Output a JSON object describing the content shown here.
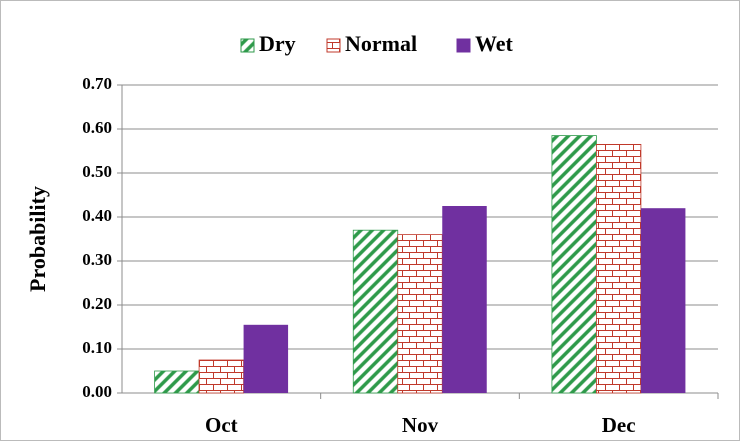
{
  "chart_data": {
    "type": "bar",
    "y_label": "Probability",
    "categories": [
      "Oct",
      "Nov",
      "Dec"
    ],
    "series": [
      {
        "name": "Dry",
        "color": "#2e9a4a",
        "values": [
          0.05,
          0.37,
          0.585
        ]
      },
      {
        "name": "Normal",
        "color": "#c0392b",
        "values": [
          0.075,
          0.36,
          0.565
        ]
      },
      {
        "name": "Wet",
        "color": "#7030a0",
        "values": [
          0.155,
          0.425,
          0.42
        ]
      }
    ],
    "ylim": [
      0,
      0.7
    ],
    "yticks": [
      {
        "value": 0,
        "label": "0.00"
      },
      {
        "value": 0.1,
        "label": "0.10"
      },
      {
        "value": 0.2,
        "label": "0.20"
      },
      {
        "value": 0.3,
        "label": "0.30"
      },
      {
        "value": 0.4,
        "label": "0.40"
      },
      {
        "value": 0.5,
        "label": "0.50"
      },
      {
        "value": 0.6,
        "label": "0.60"
      },
      {
        "value": 0.7,
        "label": "0.70"
      }
    ],
    "grid": true,
    "legend": "top"
  }
}
